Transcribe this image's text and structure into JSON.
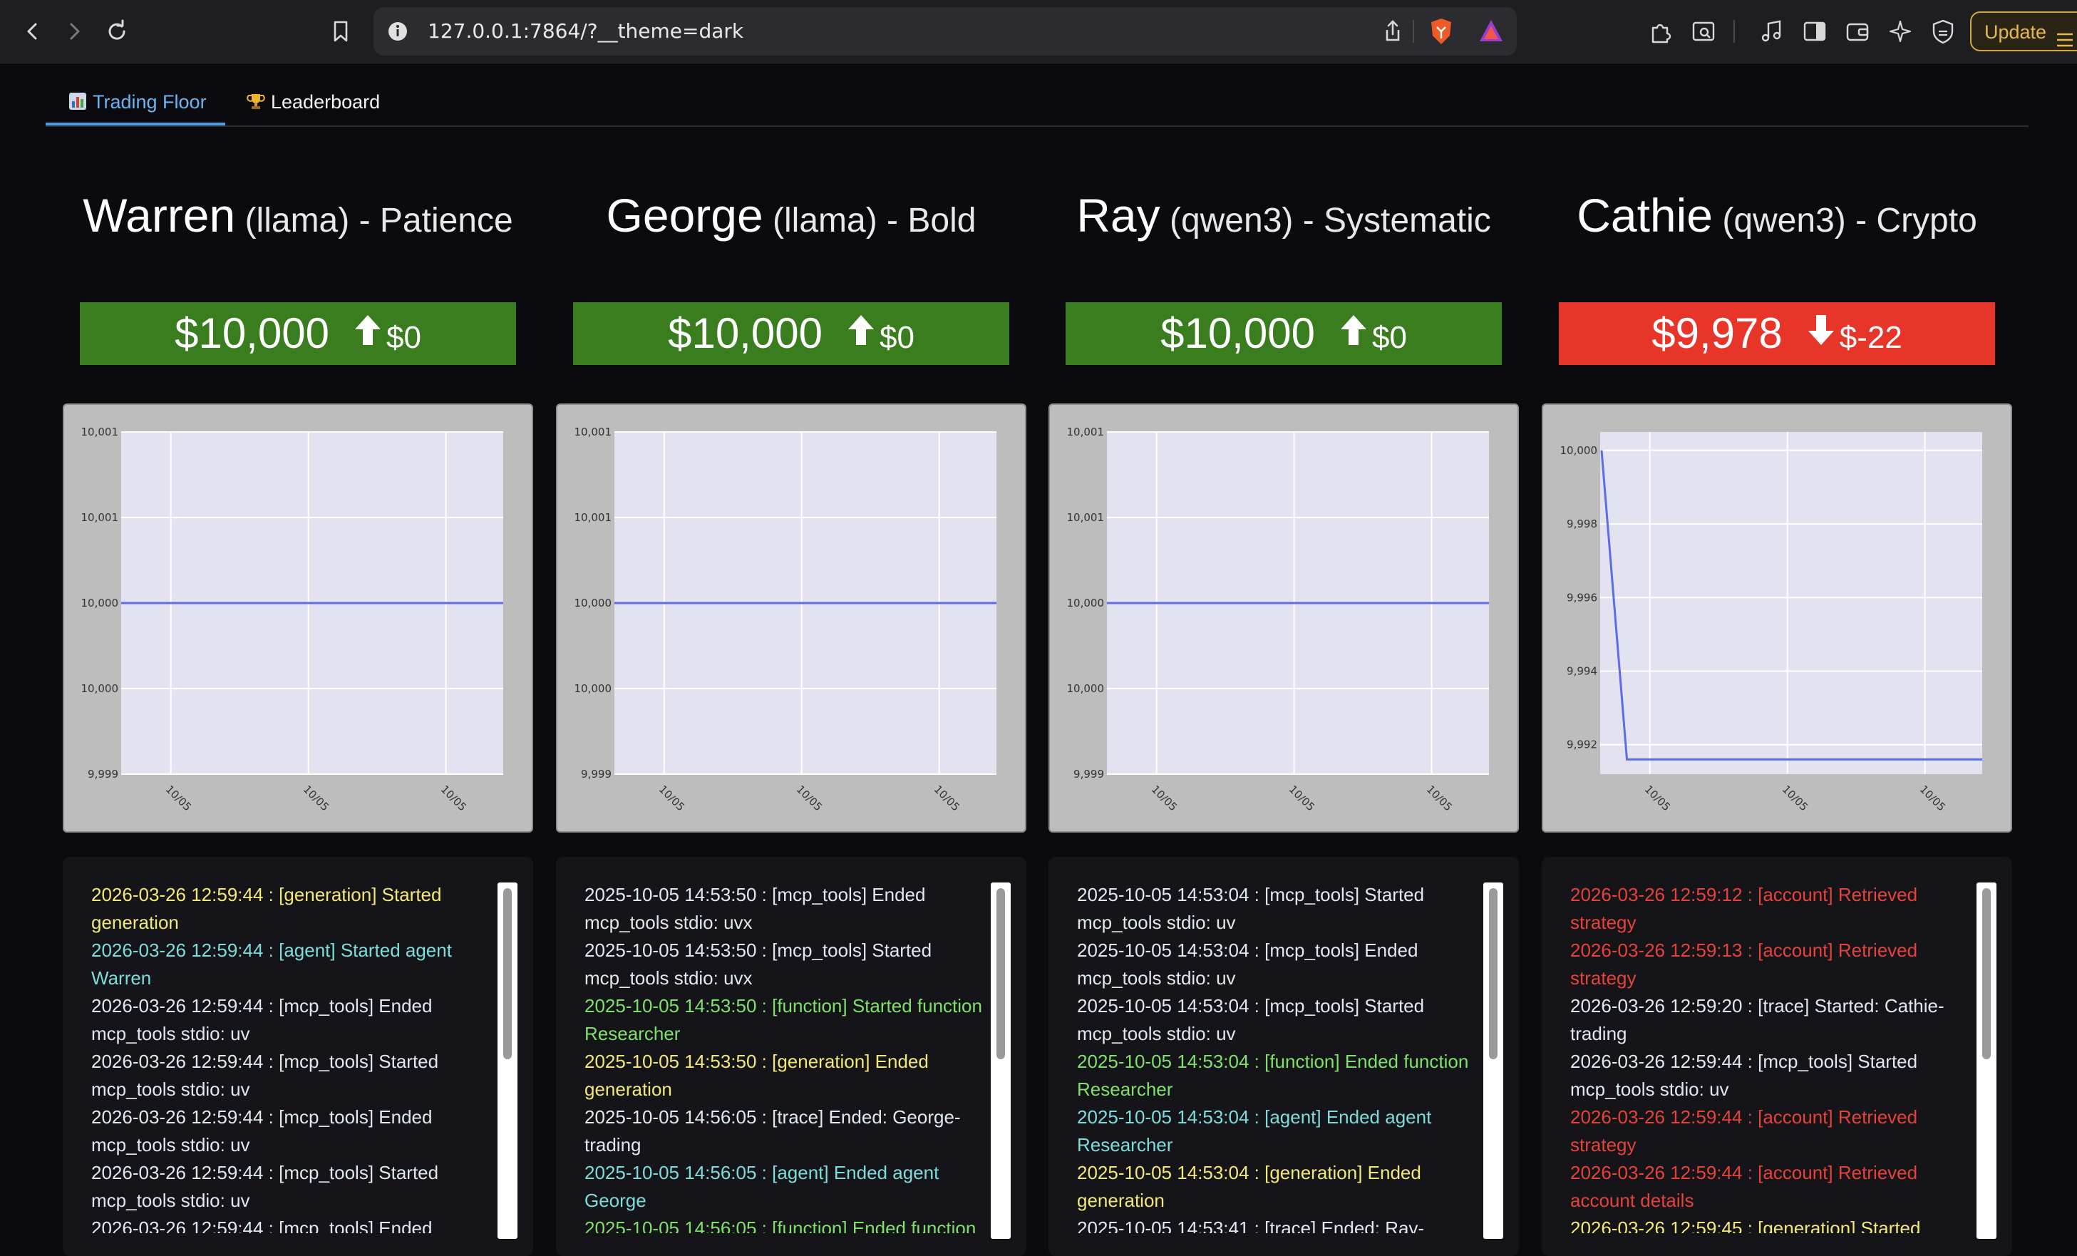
{
  "browser": {
    "url": "127.0.0.1:7864/?__theme=dark",
    "update_label": "Update"
  },
  "tabs": [
    {
      "label": "Trading Floor",
      "icon": "bar-chart-icon",
      "active": true
    },
    {
      "label": "Leaderboard",
      "icon": "trophy-icon",
      "active": false
    }
  ],
  "colors": {
    "up": "#3a7d1f",
    "down": "#e8352a",
    "line": "#5a6ee6",
    "plot_bg": "#e2e2f0"
  },
  "traders": [
    {
      "name": "Warren",
      "model": "(llama)",
      "style": "Patience",
      "value": "$10,000",
      "direction": "up",
      "change": "$0",
      "chart_data": {
        "type": "line",
        "x_ticks": [
          "10/05",
          "10/05",
          "10/05"
        ],
        "y_ticks": [
          "10,001",
          "10,001",
          "10,000",
          "10,000",
          "9,999"
        ],
        "y_tick_values": [
          10000.5,
          10000.25,
          10000,
          9999.75,
          9999.5
        ],
        "ylim": [
          9999.5,
          10000.5
        ],
        "values": [
          10000,
          10000,
          10000
        ],
        "grid": true
      },
      "logs": [
        {
          "text": "2026-03-26 12:59:44 : [generation] Started generation",
          "color": "yellow"
        },
        {
          "text": "2026-03-26 12:59:44 : [agent] Started agent Warren",
          "color": "cyan"
        },
        {
          "text": "2026-03-26 12:59:44 : [mcp_tools] Ended mcp_tools stdio: uv",
          "color": "white"
        },
        {
          "text": "2026-03-26 12:59:44 : [mcp_tools] Started mcp_tools stdio: uv",
          "color": "white"
        },
        {
          "text": "2026-03-26 12:59:44 : [mcp_tools] Ended mcp_tools stdio: uv",
          "color": "white"
        },
        {
          "text": "2026-03-26 12:59:44 : [mcp_tools] Started mcp_tools stdio: uv",
          "color": "white"
        },
        {
          "text": "2026-03-26 12:59:44 : [mcp_tools] Ended",
          "color": "white"
        }
      ]
    },
    {
      "name": "George",
      "model": "(llama)",
      "style": "Bold",
      "value": "$10,000",
      "direction": "up",
      "change": "$0",
      "chart_data": {
        "type": "line",
        "x_ticks": [
          "10/05",
          "10/05",
          "10/05"
        ],
        "y_ticks": [
          "10,001",
          "10,001",
          "10,000",
          "10,000",
          "9,999"
        ],
        "y_tick_values": [
          10000.5,
          10000.25,
          10000,
          9999.75,
          9999.5
        ],
        "ylim": [
          9999.5,
          10000.5
        ],
        "values": [
          10000,
          10000,
          10000
        ],
        "grid": true
      },
      "logs": [
        {
          "text": "2025-10-05 14:53:50 : [mcp_tools] Ended mcp_tools stdio: uvx",
          "color": "white"
        },
        {
          "text": "2025-10-05 14:53:50 : [mcp_tools] Started mcp_tools stdio: uvx",
          "color": "white"
        },
        {
          "text": "2025-10-05 14:53:50 : [function] Started function Researcher",
          "color": "green"
        },
        {
          "text": "2025-10-05 14:53:50 : [generation] Ended generation",
          "color": "yellow"
        },
        {
          "text": "2025-10-05 14:56:05 : [trace] Ended: George-trading",
          "color": "white"
        },
        {
          "text": "2025-10-05 14:56:05 : [agent] Ended agent George",
          "color": "cyan"
        },
        {
          "text": "2025-10-05 14:56:05 : [function] Ended function",
          "color": "green"
        }
      ]
    },
    {
      "name": "Ray",
      "model": "(qwen3)",
      "style": "Systematic",
      "value": "$10,000",
      "direction": "up",
      "change": "$0",
      "chart_data": {
        "type": "line",
        "x_ticks": [
          "10/05",
          "10/05",
          "10/05"
        ],
        "y_ticks": [
          "10,001",
          "10,001",
          "10,000",
          "10,000",
          "9,999"
        ],
        "y_tick_values": [
          10000.5,
          10000.25,
          10000,
          9999.75,
          9999.5
        ],
        "ylim": [
          9999.5,
          10000.5
        ],
        "values": [
          10000,
          10000,
          10000
        ],
        "grid": true
      },
      "logs": [
        {
          "text": "2025-10-05 14:53:04 : [mcp_tools] Started mcp_tools stdio: uv",
          "color": "white"
        },
        {
          "text": "2025-10-05 14:53:04 : [mcp_tools] Ended mcp_tools stdio: uv",
          "color": "white"
        },
        {
          "text": "2025-10-05 14:53:04 : [mcp_tools] Started mcp_tools stdio: uv",
          "color": "white"
        },
        {
          "text": "2025-10-05 14:53:04 : [function] Ended function Researcher",
          "color": "green"
        },
        {
          "text": "2025-10-05 14:53:04 : [agent] Ended agent Researcher",
          "color": "cyan"
        },
        {
          "text": "2025-10-05 14:53:04 : [generation] Ended generation",
          "color": "yellow"
        },
        {
          "text": "2025-10-05 14:53:41 : [trace] Ended: Ray-",
          "color": "white"
        }
      ]
    },
    {
      "name": "Cathie",
      "model": "(qwen3)",
      "style": "Crypto",
      "value": "$9,978",
      "direction": "down",
      "change": "$-22",
      "chart_data": {
        "type": "line",
        "x_ticks": [
          "10/05",
          "10/05",
          "10/05"
        ],
        "y_ticks": [
          "10,000",
          "9,998",
          "9,996",
          "9,994",
          "9,992"
        ],
        "y_tick_values": [
          10000,
          9998,
          9996,
          9994,
          9992
        ],
        "ylim": [
          9991.2,
          10000.5
        ],
        "values": [
          10000,
          9991.6,
          9991.6
        ],
        "grid": true
      },
      "logs": [
        {
          "text": "2026-03-26 12:59:12 : [account] Retrieved strategy",
          "color": "red"
        },
        {
          "text": "2026-03-26 12:59:13 : [account] Retrieved strategy",
          "color": "red"
        },
        {
          "text": "2026-03-26 12:59:20 : [trace] Started: Cathie-trading",
          "color": "white"
        },
        {
          "text": "2026-03-26 12:59:44 : [mcp_tools] Started mcp_tools stdio: uv",
          "color": "white"
        },
        {
          "text": "2026-03-26 12:59:44 : [account] Retrieved strategy",
          "color": "red"
        },
        {
          "text": "2026-03-26 12:59:44 : [account] Retrieved account details",
          "color": "red"
        },
        {
          "text": "2026-03-26 12:59:45 : [generation] Started",
          "color": "yellow"
        }
      ]
    }
  ]
}
